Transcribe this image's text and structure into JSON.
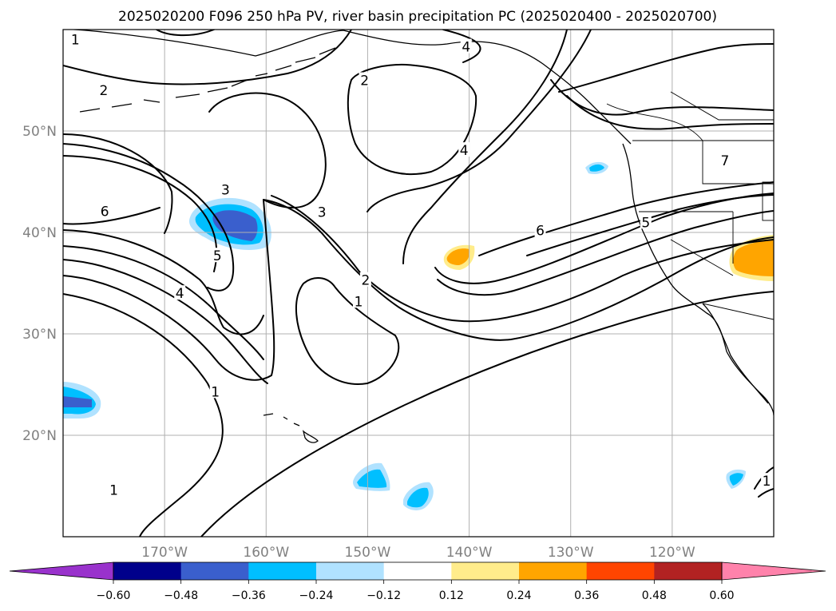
{
  "title": "2025020200 F096 250 hPa PV, river basin precipitation PC (2025020400 - 2025020700)",
  "map": {
    "lon_range": [
      -180,
      -110
    ],
    "lat_range": [
      10,
      60
    ],
    "lat_ticks": [
      {
        "value": 50,
        "label": "50°N"
      },
      {
        "value": 40,
        "label": "40°N"
      },
      {
        "value": 30,
        "label": "30°N"
      },
      {
        "value": 20,
        "label": "20°N"
      }
    ],
    "lon_ticks": [
      {
        "value": -170,
        "label": "170°W"
      },
      {
        "value": -160,
        "label": "160°W"
      },
      {
        "value": -150,
        "label": "150°W"
      },
      {
        "value": -140,
        "label": "140°W"
      },
      {
        "value": -130,
        "label": "130°W"
      },
      {
        "value": -120,
        "label": "120°W"
      }
    ],
    "gridlines": true
  },
  "pv_contour_labels": [
    {
      "text": "1",
      "lon": -178.8,
      "lat": 59.0
    },
    {
      "text": "2",
      "lon": -176.0,
      "lat": 54.0
    },
    {
      "text": "4",
      "lon": -140.3,
      "lat": 58.3
    },
    {
      "text": "2",
      "lon": -150.3,
      "lat": 55.0
    },
    {
      "text": "4",
      "lon": -140.5,
      "lat": 48.1
    },
    {
      "text": "7",
      "lon": -114.8,
      "lat": 47.1
    },
    {
      "text": "3",
      "lon": -164.0,
      "lat": 44.2
    },
    {
      "text": "3",
      "lon": -154.5,
      "lat": 42.0
    },
    {
      "text": "6",
      "lon": -175.9,
      "lat": 42.1
    },
    {
      "text": "6",
      "lon": -133.0,
      "lat": 40.2
    },
    {
      "text": "5",
      "lon": -122.6,
      "lat": 41.0
    },
    {
      "text": "5",
      "lon": -164.8,
      "lat": 37.7
    },
    {
      "text": "2",
      "lon": -150.2,
      "lat": 35.3
    },
    {
      "text": "4",
      "lon": -168.5,
      "lat": 34.0
    },
    {
      "text": "1",
      "lon": -150.9,
      "lat": 33.2
    },
    {
      "text": "1",
      "lon": -165.0,
      "lat": 24.3
    },
    {
      "text": "1",
      "lon": -175.0,
      "lat": 14.6
    },
    {
      "text": "1",
      "lon": -110.7,
      "lat": 15.5
    }
  ],
  "precip_pc_colorbar": {
    "levels": [
      -0.6,
      -0.48,
      -0.36,
      -0.24,
      -0.12,
      0.12,
      0.24,
      0.36,
      0.48,
      0.6
    ],
    "tick_labels": [
      "−0.60",
      "−0.48",
      "−0.36",
      "−0.24",
      "−0.12",
      "0.12",
      "0.24",
      "0.36",
      "0.48",
      "0.60"
    ],
    "colors": [
      "#9932cc",
      "#00008b",
      "#3a5fcd",
      "#00bfff",
      "#b0e2ff",
      "#ffffff",
      "#ffec8b",
      "#ffa500",
      "#ff4500",
      "#b22222",
      "#ff82ab"
    ],
    "extend": "both"
  }
}
